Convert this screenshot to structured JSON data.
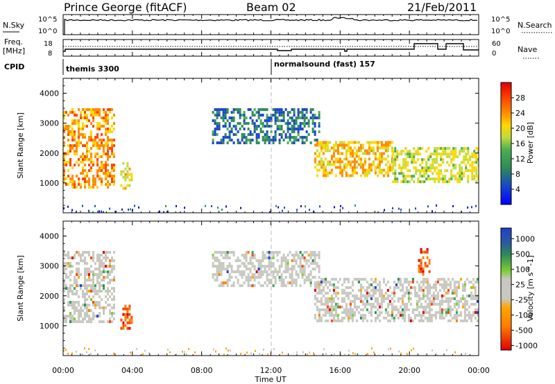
{
  "header": {
    "station": "Prince George (fitACF)",
    "beam": "Beam 02",
    "date": "21/Feb/2011"
  },
  "strip_labels": {
    "nsky": "N.Sky",
    "nsearch": "N.Search",
    "freq": "Freq.",
    "freq_unit": "[MHz]",
    "nave": "Nave",
    "cpid": "CPID",
    "nsky_ticks": [
      "10^5",
      "10^0"
    ],
    "nsearch_ticks": [
      "10^5",
      "10^0"
    ],
    "freq_ticks": [
      "18",
      "8"
    ],
    "nave_ticks": [
      "60",
      "0"
    ]
  },
  "modes": [
    {
      "name": "themis 3300",
      "start": "00:00"
    },
    {
      "name": "normalsound (fast) 157",
      "start": "12:00"
    }
  ],
  "chart_data": [
    {
      "type": "heatmap",
      "name": "power",
      "ylabel": "Slant Range [km]",
      "ylim": [
        0,
        4500
      ],
      "yticks": [
        "1000",
        "2000",
        "3000",
        "4000"
      ],
      "xlim": [
        "00:00",
        "00:00"
      ],
      "xticks": [
        "00:00",
        "04:00",
        "08:00",
        "12:00",
        "16:00",
        "20:00",
        "00:00"
      ],
      "colorbar": {
        "label": "Power [dB]",
        "ticks": [
          "28",
          "24",
          "20",
          "16",
          "12",
          "8",
          "4"
        ],
        "range": [
          0,
          30
        ],
        "colors": [
          "#0000ff",
          "#1846c8",
          "#2e8b57",
          "#4caf50",
          "#bedc3c",
          "#ffd700",
          "#ff8c00",
          "#ff4500",
          "#e00000"
        ]
      },
      "echo_regions": [
        {
          "t": [
            0.0,
            3.0
          ],
          "range_km": [
            900,
            3500
          ],
          "power_db": 22
        },
        {
          "t": [
            3.3,
            4.0
          ],
          "range_km": [
            800,
            1700
          ],
          "power_db": 18
        },
        {
          "t": [
            8.6,
            14.8
          ],
          "range_km": [
            2300,
            3500
          ],
          "power_db": 6
        },
        {
          "t": [
            14.5,
            19.0
          ],
          "range_km": [
            1200,
            2400
          ],
          "power_db": 20
        },
        {
          "t": [
            19.0,
            24.0
          ],
          "range_km": [
            1000,
            2200
          ],
          "power_db": 16
        }
      ]
    },
    {
      "type": "heatmap",
      "name": "velocity",
      "ylabel": "Slant Range [km]",
      "ylim": [
        0,
        4500
      ],
      "yticks": [
        "1000",
        "2000",
        "3000",
        "4000"
      ],
      "xlabel": "Time UT",
      "xticks": [
        "00:00",
        "04:00",
        "08:00",
        "12:00",
        "16:00",
        "20:00",
        "00:00"
      ],
      "colorbar": {
        "label": "Velocity [m s^-1]",
        "ticks": [
          "1000",
          "500",
          "100",
          "25",
          "-25",
          "-100",
          "-500",
          "-1000"
        ],
        "colors": [
          "#2040c8",
          "#2e8b57",
          "#34a853",
          "#7ccd32",
          "#c8c8c0",
          "#ffa500",
          "#ff7f00",
          "#ff4500",
          "#e00000"
        ]
      },
      "echo_regions": [
        {
          "t": [
            0.0,
            3.0
          ],
          "range_km": [
            1100,
            3500
          ],
          "velocity": 0
        },
        {
          "t": [
            3.3,
            4.0
          ],
          "range_km": [
            900,
            1700
          ],
          "velocity": -300
        },
        {
          "t": [
            8.6,
            14.8
          ],
          "range_km": [
            2300,
            3500
          ],
          "velocity": 0
        },
        {
          "t": [
            14.5,
            24.0
          ],
          "range_km": [
            1200,
            2600
          ],
          "velocity": 0
        },
        {
          "t": [
            20.5,
            21.2
          ],
          "range_km": [
            2700,
            3600
          ],
          "velocity": -400
        }
      ]
    }
  ]
}
